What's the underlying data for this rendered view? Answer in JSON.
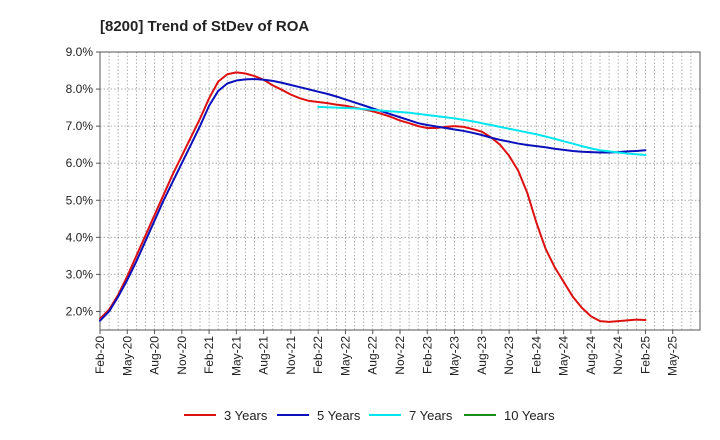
{
  "chart_data": {
    "type": "line",
    "title": "[8200]  Trend of StDev of ROA",
    "xlabel": "",
    "ylabel": "",
    "x_tick_labels": [
      "Feb-20",
      "May-20",
      "Aug-20",
      "Nov-20",
      "Feb-21",
      "May-21",
      "Aug-21",
      "Nov-21",
      "Feb-22",
      "May-22",
      "Aug-22",
      "Nov-22",
      "Feb-23",
      "May-23",
      "Aug-23",
      "Nov-23",
      "Feb-24",
      "May-24",
      "Aug-24",
      "Nov-24",
      "Feb-25",
      "May-25"
    ],
    "y_tick_labels": [
      "2.0%",
      "3.0%",
      "4.0%",
      "5.0%",
      "6.0%",
      "7.0%",
      "8.0%",
      "9.0%"
    ],
    "ylim": [
      1.5,
      9.0
    ],
    "y_ticks": [
      2.0,
      3.0,
      4.0,
      5.0,
      6.0,
      7.0,
      8.0,
      9.0
    ],
    "grid": true,
    "legend_position": "bottom",
    "series": [
      {
        "name": "3 Years",
        "color": "#dd1111",
        "x": [
          "Feb-20",
          "Mar-20",
          "Apr-20",
          "May-20",
          "Jun-20",
          "Jul-20",
          "Aug-20",
          "Sep-20",
          "Oct-20",
          "Nov-20",
          "Dec-20",
          "Jan-21",
          "Feb-21",
          "Mar-21",
          "Apr-21",
          "May-21",
          "Jun-21",
          "Jul-21",
          "Aug-21",
          "Sep-21",
          "Oct-21",
          "Nov-21",
          "Dec-21",
          "Jan-22",
          "Feb-22",
          "Mar-22",
          "Apr-22",
          "May-22",
          "Jun-22",
          "Jul-22",
          "Aug-22",
          "Sep-22",
          "Oct-22",
          "Nov-22",
          "Dec-22",
          "Jan-23",
          "Feb-23",
          "Mar-23",
          "Apr-23",
          "May-23",
          "Jun-23",
          "Jul-23",
          "Aug-23",
          "Sep-23",
          "Oct-23",
          "Nov-23",
          "Dec-23",
          "Jan-24",
          "Feb-24",
          "Mar-24",
          "Apr-24",
          "May-24",
          "Jun-24",
          "Jul-24",
          "Aug-24",
          "Sep-24",
          "Oct-24",
          "Nov-24",
          "Dec-24",
          "Jan-25",
          "Feb-25"
        ],
        "values": [
          1.8,
          2.05,
          2.45,
          2.95,
          3.5,
          4.05,
          4.6,
          5.15,
          5.7,
          6.2,
          6.7,
          7.2,
          7.75,
          8.2,
          8.4,
          8.45,
          8.42,
          8.35,
          8.25,
          8.1,
          7.98,
          7.85,
          7.75,
          7.68,
          7.65,
          7.62,
          7.58,
          7.55,
          7.5,
          7.45,
          7.4,
          7.33,
          7.25,
          7.15,
          7.08,
          7.0,
          6.95,
          6.95,
          6.98,
          7.0,
          6.98,
          6.92,
          6.85,
          6.7,
          6.5,
          6.2,
          5.8,
          5.2,
          4.4,
          3.7,
          3.2,
          2.8,
          2.4,
          2.1,
          1.87,
          1.74,
          1.72,
          1.74,
          1.76,
          1.78,
          1.77
        ]
      },
      {
        "name": "5 Years",
        "color": "#0a10bb",
        "x": [
          "Feb-20",
          "Mar-20",
          "Apr-20",
          "May-20",
          "Jun-20",
          "Jul-20",
          "Aug-20",
          "Sep-20",
          "Oct-20",
          "Nov-20",
          "Dec-20",
          "Jan-21",
          "Feb-21",
          "Mar-21",
          "Apr-21",
          "May-21",
          "Jun-21",
          "Jul-21",
          "Aug-21",
          "Sep-21",
          "Oct-21",
          "Nov-21",
          "Dec-21",
          "Jan-22",
          "Feb-22",
          "Mar-22",
          "Apr-22",
          "May-22",
          "Jun-22",
          "Jul-22",
          "Aug-22",
          "Sep-22",
          "Oct-22",
          "Nov-22",
          "Dec-22",
          "Jan-23",
          "Feb-23",
          "Mar-23",
          "Apr-23",
          "May-23",
          "Jun-23",
          "Jul-23",
          "Aug-23",
          "Sep-23",
          "Oct-23",
          "Nov-23",
          "Dec-23",
          "Jan-24",
          "Feb-24",
          "Mar-24",
          "Apr-24",
          "May-24",
          "Jun-24",
          "Jul-24",
          "Aug-24",
          "Sep-24",
          "Oct-24",
          "Nov-24",
          "Dec-24",
          "Jan-25",
          "Feb-25"
        ],
        "values": [
          1.75,
          2.0,
          2.4,
          2.85,
          3.35,
          3.9,
          4.45,
          5.0,
          5.5,
          6.0,
          6.5,
          7.0,
          7.55,
          7.95,
          8.15,
          8.23,
          8.26,
          8.27,
          8.25,
          8.22,
          8.17,
          8.11,
          8.05,
          7.99,
          7.93,
          7.87,
          7.8,
          7.72,
          7.64,
          7.56,
          7.48,
          7.4,
          7.32,
          7.24,
          7.16,
          7.08,
          7.03,
          6.99,
          6.95,
          6.91,
          6.87,
          6.82,
          6.76,
          6.69,
          6.63,
          6.58,
          6.53,
          6.49,
          6.46,
          6.43,
          6.39,
          6.36,
          6.33,
          6.31,
          6.3,
          6.29,
          6.29,
          6.3,
          6.32,
          6.33,
          6.35
        ]
      },
      {
        "name": "7 Years",
        "color": "#00e5ee",
        "x": [
          "Feb-22",
          "Mar-22",
          "Apr-22",
          "May-22",
          "Jun-22",
          "Jul-22",
          "Aug-22",
          "Sep-22",
          "Oct-22",
          "Nov-22",
          "Dec-22",
          "Jan-23",
          "Feb-23",
          "Mar-23",
          "Apr-23",
          "May-23",
          "Jun-23",
          "Jul-23",
          "Aug-23",
          "Sep-23",
          "Oct-23",
          "Nov-23",
          "Dec-23",
          "Jan-24",
          "Feb-24",
          "Mar-24",
          "Apr-24",
          "May-24",
          "Jun-24",
          "Jul-24",
          "Aug-24",
          "Sep-24",
          "Oct-24",
          "Nov-24",
          "Dec-24",
          "Jan-25",
          "Feb-25"
        ],
        "values": [
          7.52,
          7.51,
          7.5,
          7.49,
          7.48,
          7.46,
          7.44,
          7.42,
          7.4,
          7.38,
          7.36,
          7.33,
          7.3,
          7.27,
          7.24,
          7.21,
          7.17,
          7.13,
          7.08,
          7.03,
          6.98,
          6.93,
          6.88,
          6.83,
          6.78,
          6.72,
          6.66,
          6.59,
          6.53,
          6.46,
          6.4,
          6.35,
          6.32,
          6.29,
          6.26,
          6.24,
          6.22
        ]
      },
      {
        "name": "10 Years",
        "color": "#1a8c1a",
        "x": [],
        "values": []
      }
    ]
  }
}
